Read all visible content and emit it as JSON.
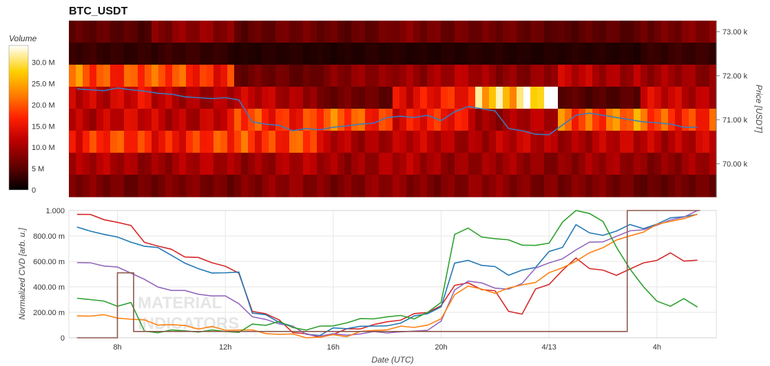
{
  "chart_data": [
    {
      "type": "heatmap",
      "title": "BTC_USDT",
      "ylabel": "Price [USDT]",
      "ylim": [
        69250,
        73250
      ],
      "yticks": [
        70000,
        71000,
        72000,
        73000
      ],
      "ytick_labels": [
        "70.00 k",
        "71.00 k",
        "72.00 k",
        "73.00 k"
      ],
      "colorbar": {
        "title": "Volume",
        "range": [
          0,
          34000000
        ],
        "ticks": [
          0,
          5000000,
          10000000,
          15000000,
          20000000,
          25000000,
          30000000
        ],
        "tick_labels": [
          "0",
          "5 M",
          "10.0 M",
          "15.0 M",
          "20.0 M",
          "25.0 M",
          "30.0 M"
        ]
      },
      "price_bands": [
        73000,
        72500,
        72000,
        71500,
        71000,
        70500,
        70000,
        69500
      ],
      "volume_profile_M": [
        [
          5,
          8,
          6,
          6,
          7,
          6,
          5,
          7
        ],
        [
          3,
          3,
          2,
          2,
          2,
          2,
          2,
          3
        ],
        [
          20,
          18,
          6,
          8,
          10,
          9,
          11,
          9
        ],
        [
          13,
          11,
          11,
          6,
          15,
          30,
          5,
          12
        ],
        [
          12,
          12,
          18,
          19,
          15,
          10,
          21,
          19
        ],
        [
          17,
          17,
          19,
          11,
          11,
          11,
          11,
          12
        ],
        [
          10,
          10,
          10,
          10,
          10,
          9,
          9,
          9
        ],
        [
          7,
          7,
          8,
          8,
          8,
          8,
          7,
          6
        ]
      ],
      "price_line": {
        "x": [
          6.5,
          7.0,
          7.5,
          8.0,
          8.5,
          9.0,
          9.5,
          10.0,
          10.5,
          11.0,
          11.5,
          12.0,
          12.5,
          13.0,
          13.5,
          14.0,
          14.5,
          15.0,
          15.5,
          16.0,
          16.5,
          17.0,
          17.5,
          18.0,
          18.5,
          19.0,
          19.5,
          20.0,
          20.5,
          21.0,
          21.5,
          22.0,
          22.5,
          23.0,
          23.5,
          24.0,
          24.5,
          25.0,
          25.5,
          26.0,
          26.5,
          27.0,
          27.5,
          28.0,
          28.5,
          29.0,
          29.5
        ],
        "y": [
          71700,
          71680,
          71660,
          71720,
          71680,
          71650,
          71600,
          71580,
          71520,
          71500,
          71480,
          71500,
          71450,
          70950,
          70900,
          70870,
          70750,
          70800,
          70770,
          70830,
          70860,
          70900,
          70920,
          71050,
          71080,
          71050,
          71100,
          70980,
          71180,
          71300,
          71250,
          71200,
          70800,
          70750,
          70670,
          70660,
          70880,
          71100,
          71150,
          71100,
          71050,
          71000,
          70950,
          70930,
          70900,
          70830,
          70830
        ]
      }
    },
    {
      "type": "line",
      "ylabel": "Normalized CVD [arb. u.]",
      "xlabel": "Date (UTC)",
      "ylim": [
        0,
        1.0
      ],
      "yticks": [
        0,
        0.2,
        0.4,
        0.6,
        0.8,
        1.0
      ],
      "ytick_labels": [
        "0",
        "200.00 m",
        "400.00 m",
        "600.00 m",
        "800.00 m",
        "1.000"
      ],
      "xlim": [
        6.2,
        30.2
      ],
      "xticks": [
        8,
        12,
        16,
        20,
        24,
        28
      ],
      "xtick_labels": [
        "8h",
        "12h",
        "16h",
        "20h",
        "4/13",
        "4h"
      ],
      "x": [
        6.5,
        7.0,
        7.5,
        8.0,
        8.5,
        9.0,
        9.5,
        10.0,
        10.5,
        11.0,
        11.5,
        12.0,
        12.5,
        13.0,
        13.5,
        14.0,
        14.5,
        15.0,
        15.5,
        16.0,
        16.5,
        17.0,
        17.5,
        18.0,
        18.5,
        19.0,
        19.5,
        20.0,
        20.5,
        21.0,
        21.5,
        22.0,
        22.5,
        23.0,
        23.5,
        24.0,
        24.5,
        25.0,
        25.5,
        26.0,
        26.5,
        27.0,
        27.5,
        28.0,
        28.5,
        29.0,
        29.5
      ],
      "series": [
        {
          "color": "#d62728",
          "values": [
            0.97,
            0.96,
            0.94,
            0.9,
            0.88,
            0.76,
            0.71,
            0.7,
            0.64,
            0.62,
            0.6,
            0.56,
            0.5,
            0.22,
            0.18,
            0.14,
            0.05,
            0.02,
            0.01,
            0.03,
            0.06,
            0.08,
            0.1,
            0.12,
            0.15,
            0.18,
            0.2,
            0.26,
            0.4,
            0.44,
            0.38,
            0.36,
            0.22,
            0.18,
            0.38,
            0.43,
            0.52,
            0.63,
            0.55,
            0.52,
            0.5,
            0.54,
            0.58,
            0.62,
            0.66,
            0.6,
            0.62
          ]
        },
        {
          "color": "#1f77b4",
          "values": [
            0.86,
            0.84,
            0.82,
            0.78,
            0.76,
            0.72,
            0.7,
            0.66,
            0.58,
            0.54,
            0.52,
            0.5,
            0.52,
            0.2,
            0.17,
            0.13,
            0.09,
            0.02,
            0.03,
            0.07,
            0.07,
            0.1,
            0.08,
            0.1,
            0.12,
            0.16,
            0.2,
            0.24,
            0.58,
            0.62,
            0.56,
            0.56,
            0.5,
            0.52,
            0.56,
            0.68,
            0.7,
            0.9,
            0.82,
            0.8,
            0.85,
            0.88,
            0.86,
            0.9,
            0.93,
            0.96,
            0.97
          ]
        },
        {
          "color": "#9467bd",
          "values": [
            0.58,
            0.6,
            0.56,
            0.55,
            0.52,
            0.45,
            0.4,
            0.38,
            0.36,
            0.35,
            0.33,
            0.32,
            0.28,
            0.16,
            0.14,
            0.12,
            0.08,
            0.03,
            0.02,
            0.02,
            0.03,
            0.03,
            0.04,
            0.05,
            0.04,
            0.05,
            0.07,
            0.12,
            0.38,
            0.45,
            0.42,
            0.4,
            0.38,
            0.42,
            0.56,
            0.58,
            0.62,
            0.7,
            0.74,
            0.76,
            0.8,
            0.83,
            0.86,
            0.88,
            0.92,
            0.96,
            0.99
          ]
        },
        {
          "color": "#ff7f0e",
          "values": [
            0.17,
            0.18,
            0.17,
            0.16,
            0.15,
            0.13,
            0.11,
            0.1,
            0.09,
            0.08,
            0.08,
            0.06,
            0.07,
            0.05,
            0.04,
            0.03,
            0.02,
            0.01,
            0.0,
            0.02,
            0.02,
            0.04,
            0.06,
            0.07,
            0.08,
            0.09,
            0.1,
            0.14,
            0.35,
            0.4,
            0.38,
            0.36,
            0.38,
            0.42,
            0.44,
            0.5,
            0.56,
            0.6,
            0.66,
            0.72,
            0.76,
            0.8,
            0.84,
            0.88,
            0.92,
            0.94,
            0.96
          ]
        },
        {
          "color": "#2ca02c",
          "values": [
            0.32,
            0.3,
            0.28,
            0.26,
            0.27,
            0.05,
            0.05,
            0.05,
            0.06,
            0.05,
            0.05,
            0.06,
            0.04,
            0.1,
            0.11,
            0.12,
            0.08,
            0.07,
            0.08,
            0.1,
            0.12,
            0.14,
            0.16,
            0.16,
            0.17,
            0.16,
            0.19,
            0.28,
            0.82,
            0.85,
            0.8,
            0.78,
            0.76,
            0.74,
            0.72,
            0.74,
            0.92,
            1.0,
            0.98,
            0.92,
            0.7,
            0.55,
            0.4,
            0.28,
            0.26,
            0.3,
            0.24
          ]
        },
        {
          "color": "#8c564b",
          "values": [
            0.0,
            0.0,
            0.0,
            0.0,
            0.0,
            0.0,
            0.0,
            0.0,
            0.0,
            0.0,
            0.0,
            0.0,
            0.0,
            0.0,
            0.0,
            0.0,
            0.0,
            0.0,
            0.0,
            0.0,
            0.0,
            0.0,
            0.0,
            0.0,
            0.0,
            0.0,
            0.0,
            0.0,
            0.0,
            0.0,
            0.0,
            0.0,
            0.0,
            0.0,
            0.0,
            0.0,
            0.0,
            1.0,
            1.0,
            1.0,
            1.0,
            1.0,
            1.0,
            1.0,
            1.0,
            1.0,
            1.0
          ]
        }
      ],
      "pulse": {
        "color": "#8c564b",
        "x": [
          6.5,
          8.0,
          8.0,
          8.6,
          8.6,
          15.0,
          21.5,
          26.9,
          26.9,
          29.6
        ],
        "y": [
          0.0,
          0.0,
          0.51,
          0.51,
          0.05,
          0.05,
          0.05,
          0.05,
          1.0,
          1.0
        ]
      }
    }
  ],
  "watermark": {
    "line1": "MATERIAL",
    "line2": "INDICATORS"
  }
}
